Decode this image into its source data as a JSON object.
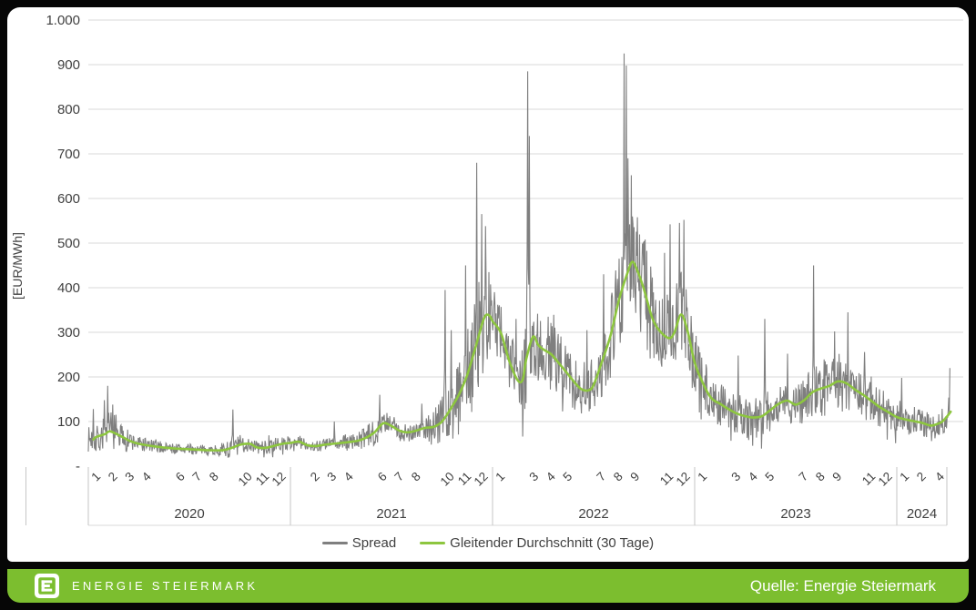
{
  "colors": {
    "card_bg": "#ffffff",
    "page_bg": "#060606",
    "footer_green": "#7CBE2F",
    "spread_gray": "#7f7f7f",
    "ma_green": "#8DC63F",
    "gridline": "#d9d9d9",
    "axis_band_line": "#c6c6c6",
    "axis_text": "#404040"
  },
  "y_axis": {
    "title": "[EUR/MWh]",
    "ticks": [
      {
        "v": 0,
        "label": "-"
      },
      {
        "v": 100,
        "label": "100"
      },
      {
        "v": 200,
        "label": "200"
      },
      {
        "v": 300,
        "label": "300"
      },
      {
        "v": 400,
        "label": "400"
      },
      {
        "v": 500,
        "label": "500"
      },
      {
        "v": 600,
        "label": "600"
      },
      {
        "v": 700,
        "label": "700"
      },
      {
        "v": 800,
        "label": "800"
      },
      {
        "v": 900,
        "label": "900"
      },
      {
        "v": 1000,
        "label": "1.000"
      }
    ]
  },
  "x_axis": {
    "years": [
      {
        "label": "2020",
        "start_month_index": 0,
        "n_months": 12,
        "month_labels": [
          "1",
          "2",
          "3",
          "4",
          "6",
          "7",
          "8",
          "10",
          "11",
          "12"
        ],
        "month_numbers": [
          1,
          2,
          3,
          4,
          6,
          7,
          8,
          10,
          11,
          12
        ]
      },
      {
        "label": "2021",
        "start_month_index": 12,
        "n_months": 12,
        "month_labels": [
          "2",
          "3",
          "4",
          "6",
          "7",
          "8",
          "10",
          "11",
          "12"
        ],
        "month_numbers": [
          2,
          3,
          4,
          6,
          7,
          8,
          10,
          11,
          12
        ]
      },
      {
        "label": "2022",
        "start_month_index": 24,
        "n_months": 12,
        "month_labels": [
          "1",
          "3",
          "4",
          "5",
          "7",
          "8",
          "9",
          "11",
          "12"
        ],
        "month_numbers": [
          1,
          3,
          4,
          5,
          7,
          8,
          9,
          11,
          12
        ]
      },
      {
        "label": "2023",
        "start_month_index": 36,
        "n_months": 12,
        "month_labels": [
          "1",
          "3",
          "4",
          "5",
          "7",
          "8",
          "9",
          "11",
          "12"
        ],
        "month_numbers": [
          1,
          3,
          4,
          5,
          7,
          8,
          9,
          11,
          12
        ]
      },
      {
        "label": "2024",
        "start_month_index": 48,
        "n_months": 3,
        "month_labels": [
          "1",
          "2",
          "4"
        ],
        "month_numbers": [
          1,
          2,
          4
        ]
      }
    ]
  },
  "legend": {
    "items": [
      {
        "label": "Spread",
        "color": "#7f7f7f"
      },
      {
        "label": "Gleitender Durchschnitt (30 Tage)",
        "color": "#8DC63F"
      }
    ]
  },
  "footer": {
    "brand": "ENERGIE STEIERMARK",
    "source": "Quelle: Energie Steiermark"
  },
  "chart_data": {
    "type": "line",
    "title": "",
    "xlabel": "",
    "ylabel": "[EUR/MWh]",
    "ylim": [
      0,
      1000
    ],
    "x_start": "2020-01",
    "x_end": "2024-04",
    "x_unit": "months_since_2020_01",
    "grid": "horizontal only",
    "legend_position": "bottom center",
    "seed": 7,
    "series": [
      {
        "name": "Spread",
        "color": "#7f7f7f",
        "style": "daily noisy line",
        "ma_center_note": "daily values scatter around the 30-day moving average",
        "noise_halfwidth_by_month": [
          [
            0,
            28
          ],
          [
            1,
            45
          ],
          [
            1.5,
            48
          ],
          [
            2,
            26
          ],
          [
            3,
            18
          ],
          [
            4,
            14
          ],
          [
            5,
            12
          ],
          [
            6,
            12
          ],
          [
            7,
            11
          ],
          [
            8,
            13
          ],
          [
            8.6,
            28
          ],
          [
            9,
            22
          ],
          [
            10,
            15
          ],
          [
            11,
            18
          ],
          [
            12,
            15
          ],
          [
            13,
            13
          ],
          [
            14,
            15
          ],
          [
            15,
            17
          ],
          [
            16,
            19
          ],
          [
            17,
            32
          ],
          [
            18,
            26
          ],
          [
            19,
            21
          ],
          [
            20,
            26
          ],
          [
            21,
            65
          ],
          [
            22,
            88
          ],
          [
            23,
            128
          ],
          [
            24,
            95
          ],
          [
            25,
            68
          ],
          [
            26,
            105
          ],
          [
            27,
            78
          ],
          [
            28,
            68
          ],
          [
            29,
            62
          ],
          [
            30,
            68
          ],
          [
            31,
            105
          ],
          [
            32,
            135
          ],
          [
            33,
            115
          ],
          [
            34,
            95
          ],
          [
            35,
            105
          ],
          [
            36,
            68
          ],
          [
            37,
            52
          ],
          [
            38,
            46
          ],
          [
            39,
            44
          ],
          [
            40,
            52
          ],
          [
            41,
            48
          ],
          [
            42,
            44
          ],
          [
            43,
            66
          ],
          [
            44,
            64
          ],
          [
            45,
            66
          ],
          [
            46,
            52
          ],
          [
            47,
            44
          ],
          [
            48,
            40
          ],
          [
            49,
            33
          ],
          [
            50,
            28
          ],
          [
            51,
            38
          ],
          [
            51.2,
            40
          ]
        ],
        "notable_spikes_month_value": [
          [
            0.3,
            128
          ],
          [
            0.95,
            148
          ],
          [
            1.15,
            180
          ],
          [
            1.45,
            138
          ],
          [
            8.6,
            127
          ],
          [
            14.6,
            100
          ],
          [
            17.3,
            160
          ],
          [
            19.8,
            140
          ],
          [
            21.2,
            395
          ],
          [
            21.55,
            305
          ],
          [
            22.4,
            450
          ],
          [
            23.05,
            680
          ],
          [
            23.35,
            565
          ],
          [
            23.6,
            538
          ],
          [
            24.1,
            390
          ],
          [
            25.4,
            330
          ],
          [
            26.08,
            885
          ],
          [
            26.2,
            740
          ],
          [
            27.3,
            335
          ],
          [
            29.6,
            305
          ],
          [
            30.6,
            430
          ],
          [
            31.5,
            465
          ],
          [
            31.82,
            925
          ],
          [
            31.93,
            898
          ],
          [
            32.05,
            690
          ],
          [
            32.25,
            652
          ],
          [
            32.6,
            558
          ],
          [
            33.05,
            508
          ],
          [
            34.2,
            478
          ],
          [
            34.55,
            542
          ],
          [
            35.1,
            545
          ],
          [
            35.35,
            552
          ],
          [
            36.1,
            292
          ],
          [
            38.6,
            248
          ],
          [
            40.15,
            330
          ],
          [
            41.5,
            252
          ],
          [
            43.05,
            450
          ],
          [
            44.3,
            302
          ],
          [
            45.1,
            345
          ],
          [
            46.1,
            256
          ],
          [
            48.3,
            198
          ],
          [
            51.15,
            220
          ]
        ]
      },
      {
        "name": "Gleitender Durchschnitt (30 Tage)",
        "color": "#8DC63F",
        "style": "smooth line",
        "points_by_month": [
          [
            0.3,
            60
          ],
          [
            0.5,
            66
          ],
          [
            1,
            72
          ],
          [
            1.3,
            78
          ],
          [
            2,
            66
          ],
          [
            2.5,
            56
          ],
          [
            3,
            50
          ],
          [
            4,
            44
          ],
          [
            5,
            40
          ],
          [
            6,
            38
          ],
          [
            7,
            36
          ],
          [
            8,
            36
          ],
          [
            8.6,
            42
          ],
          [
            9,
            48
          ],
          [
            9.6,
            50
          ],
          [
            10,
            42
          ],
          [
            10.5,
            41
          ],
          [
            11,
            45
          ],
          [
            11.5,
            50
          ],
          [
            12,
            52
          ],
          [
            12.5,
            55
          ],
          [
            13,
            47
          ],
          [
            13.5,
            45
          ],
          [
            14,
            48
          ],
          [
            15,
            52
          ],
          [
            16,
            57
          ],
          [
            16.5,
            64
          ],
          [
            17,
            76
          ],
          [
            17.5,
            96
          ],
          [
            18,
            90
          ],
          [
            18.5,
            79
          ],
          [
            19,
            76
          ],
          [
            19.5,
            80
          ],
          [
            20,
            86
          ],
          [
            20.5,
            88
          ],
          [
            21,
            100
          ],
          [
            21.5,
            128
          ],
          [
            22,
            160
          ],
          [
            22.5,
            205
          ],
          [
            23,
            268
          ],
          [
            23.5,
            332
          ],
          [
            23.8,
            338
          ],
          [
            24,
            325
          ],
          [
            24.5,
            298
          ],
          [
            25,
            235
          ],
          [
            25.5,
            192
          ],
          [
            25.8,
            195
          ],
          [
            26,
            240
          ],
          [
            26.4,
            290
          ],
          [
            26.7,
            272
          ],
          [
            27,
            262
          ],
          [
            27.5,
            250
          ],
          [
            28,
            228
          ],
          [
            28.5,
            205
          ],
          [
            29,
            182
          ],
          [
            29.3,
            172
          ],
          [
            29.7,
            170
          ],
          [
            30,
            182
          ],
          [
            30.5,
            235
          ],
          [
            31,
            292
          ],
          [
            31.5,
            372
          ],
          [
            32,
            432
          ],
          [
            32.3,
            458
          ],
          [
            32.6,
            438
          ],
          [
            33,
            395
          ],
          [
            33.5,
            330
          ],
          [
            34,
            300
          ],
          [
            34.5,
            287
          ],
          [
            34.8,
            300
          ],
          [
            35.2,
            340
          ],
          [
            35.6,
            300
          ],
          [
            36,
            232
          ],
          [
            36.5,
            185
          ],
          [
            37,
            152
          ],
          [
            37.5,
            140
          ],
          [
            38,
            128
          ],
          [
            38.5,
            118
          ],
          [
            39,
            112
          ],
          [
            39.5,
            109
          ],
          [
            40,
            112
          ],
          [
            40.5,
            126
          ],
          [
            41,
            140
          ],
          [
            41.5,
            147
          ],
          [
            42,
            138
          ],
          [
            42.5,
            148
          ],
          [
            43,
            166
          ],
          [
            43.5,
            174
          ],
          [
            44,
            180
          ],
          [
            44.5,
            190
          ],
          [
            45,
            186
          ],
          [
            45.5,
            172
          ],
          [
            46,
            160
          ],
          [
            46.5,
            146
          ],
          [
            47,
            132
          ],
          [
            47.5,
            121
          ],
          [
            48,
            110
          ],
          [
            48.5,
            105
          ],
          [
            49,
            101
          ],
          [
            49.5,
            97
          ],
          [
            50,
            91
          ],
          [
            50.3,
            93
          ],
          [
            50.7,
            100
          ],
          [
            51,
            112
          ],
          [
            51.2,
            122
          ]
        ]
      }
    ]
  }
}
